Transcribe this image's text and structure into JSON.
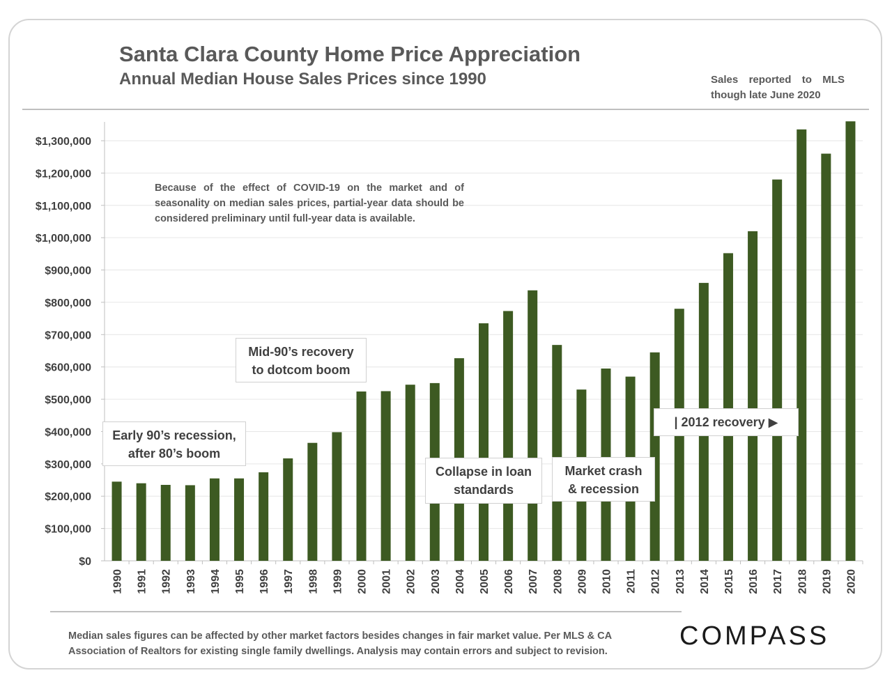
{
  "header": {
    "title": "Santa Clara County Home Price Appreciation",
    "subtitle": "Annual Median House Sales Prices since 1990",
    "note_line1_words": [
      "Sales",
      "reported",
      "to",
      "MLS"
    ],
    "note_line2": "though late June 2020"
  },
  "annotations": {
    "covid_note": "Because of the effect of COVID-19 on the market and of seasonality on median sales prices, partial-year data should be considered preliminary until full-year data is available.",
    "callout_early90s_line1": "Early 90’s recession,",
    "callout_early90s_line2": "after 80’s boom",
    "callout_mid90s_line1": "Mid-90’s recovery",
    "callout_mid90s_line2": "to dotcom boom",
    "callout_collapse_line1": "Collapse in loan",
    "callout_collapse_line2": "standards",
    "callout_crash_line1": "Market crash",
    "callout_crash_line2": "& recession",
    "callout_2012": "| 2012 recovery ▶"
  },
  "footer": {
    "footnote": "Median sales figures can be affected by other market factors besides changes in fair market value. Per MLS & CA Association of Realtors for existing single family dwellings. Analysis may contain errors and subject to revision.",
    "logo": "COMPASS"
  },
  "colors": {
    "bar": "#3d5a22",
    "grid": "#e6e6e6",
    "axis": "#bfbfbf",
    "text": "#404040"
  },
  "chart_data": {
    "type": "bar",
    "title": "Santa Clara County Home Price Appreciation",
    "xlabel": "",
    "ylabel": "",
    "ylim": [
      0,
      1350000
    ],
    "yticks": [
      0,
      100000,
      200000,
      300000,
      400000,
      500000,
      600000,
      700000,
      800000,
      900000,
      1000000,
      1100000,
      1200000,
      1300000
    ],
    "ytick_labels": [
      "$0",
      "$100,000",
      "$200,000",
      "$300,000",
      "$400,000",
      "$500,000",
      "$600,000",
      "$700,000",
      "$800,000",
      "$900,000",
      "$1,000,000",
      "$1,100,000",
      "$1,200,000",
      "$1,300,000"
    ],
    "grid": true,
    "legend": "none",
    "categories": [
      "1990",
      "1991",
      "1992",
      "1993",
      "1994",
      "1995",
      "1996",
      "1997",
      "1998",
      "1999",
      "2000",
      "2001",
      "2002",
      "2003",
      "2004",
      "2005",
      "2006",
      "2007",
      "2008",
      "2009",
      "2010",
      "2011",
      "2012",
      "2013",
      "2014",
      "2015",
      "2016",
      "2017",
      "2018",
      "2019",
      "2020"
    ],
    "values": [
      245000,
      240000,
      235000,
      234000,
      255000,
      255000,
      274000,
      317000,
      365000,
      398000,
      524000,
      525000,
      545000,
      550000,
      627000,
      735000,
      773000,
      837000,
      668000,
      530000,
      595000,
      570000,
      645000,
      780000,
      860000,
      952000,
      1020000,
      1180000,
      1335000,
      1260000,
      1360000
    ]
  }
}
